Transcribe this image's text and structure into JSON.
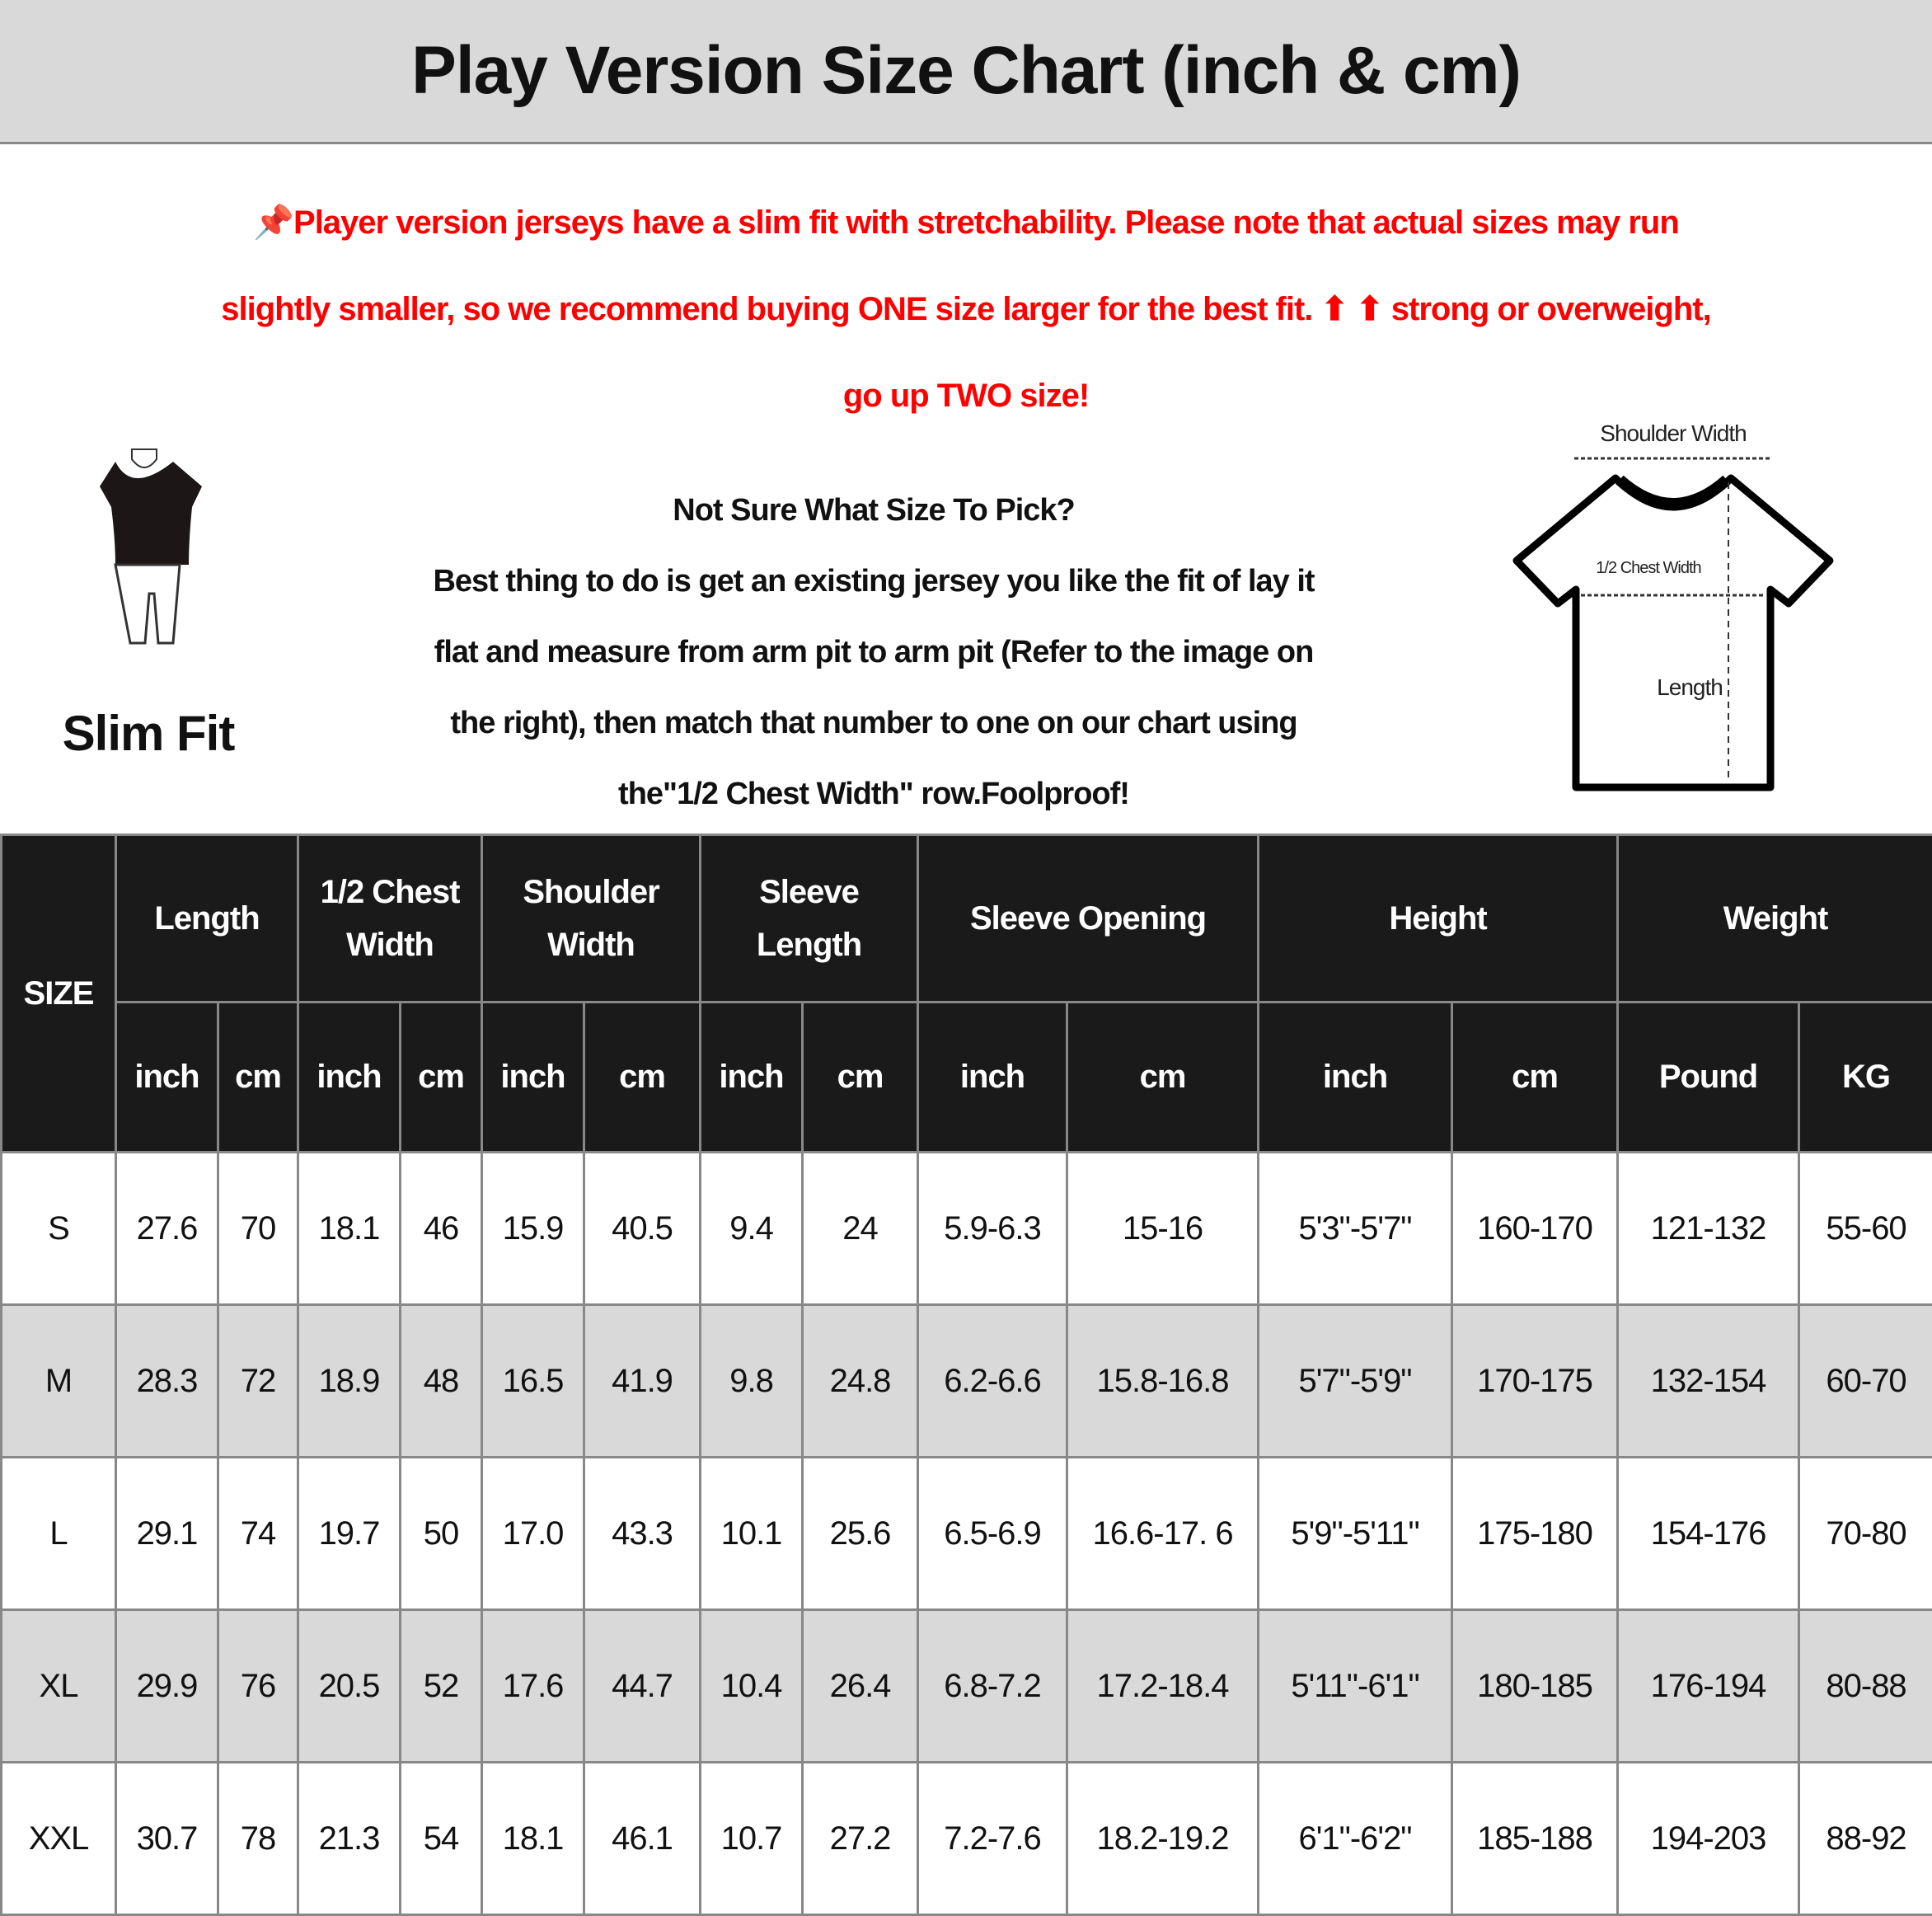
{
  "title": "Play Version Size Chart (inch & cm)",
  "notice": {
    "icon": "pushpin-icon",
    "lines": [
      "Player version jerseys have a slim fit with stretchability. Please note that actual sizes may run",
      "slightly smaller, so we recommend buying ONE size larger for the best fit. ⬆ ⬆ strong or overweight,",
      "go up TWO size!"
    ],
    "color": "#ff0000"
  },
  "slim_fit": {
    "label": "Slim Fit",
    "icon": "slim-fit-figure-icon"
  },
  "guide": {
    "heading": "Not Sure What Size To Pick?",
    "lines": [
      "Best thing to do is get an existing jersey you like the fit of lay it",
      "flat and measure from arm pit to arm pit (Refer to the image on",
      "the right), then match that number to one on our chart using",
      "the\"1/2 Chest Width\" row.Foolproof!"
    ]
  },
  "diagram": {
    "icon": "tshirt-measurement-icon",
    "shoulder": "Shoulder Width",
    "chest": "1/2 Chest Width",
    "length": "Length"
  },
  "table": {
    "size_header": "SIZE",
    "groups": [
      {
        "label": [
          "Length"
        ]
      },
      {
        "label": [
          "1/2 Chest",
          "Width"
        ]
      },
      {
        "label": [
          "Shoulder",
          "Width"
        ]
      },
      {
        "label": [
          "Sleeve",
          "Length"
        ]
      },
      {
        "label": [
          "Sleeve Opening"
        ]
      },
      {
        "label": [
          "Height"
        ]
      },
      {
        "label": [
          "Weight"
        ]
      }
    ],
    "units": [
      "inch",
      "cm",
      "inch",
      "cm",
      "inch",
      "cm",
      "inch",
      "cm",
      "inch",
      "cm",
      "inch",
      "cm",
      "Pound",
      "KG"
    ],
    "rows": [
      [
        "S",
        "27.6",
        "70",
        "18.1",
        "46",
        "15.9",
        "40.5",
        "9.4",
        "24",
        "5.9-6.3",
        "15-16",
        "5'3\"-5'7\"",
        "160-170",
        "121-132",
        "55-60"
      ],
      [
        "M",
        "28.3",
        "72",
        "18.9",
        "48",
        "16.5",
        "41.9",
        "9.8",
        "24.8",
        "6.2-6.6",
        "15.8-16.8",
        "5'7\"-5'9\"",
        "170-175",
        "132-154",
        "60-70"
      ],
      [
        "L",
        "29.1",
        "74",
        "19.7",
        "50",
        "17.0",
        "43.3",
        "10.1",
        "25.6",
        "6.5-6.9",
        "16.6-17. 6",
        "5'9\"-5'11\"",
        "175-180",
        "154-176",
        "70-80"
      ],
      [
        "XL",
        "29.9",
        "76",
        "20.5",
        "52",
        "17.6",
        "44.7",
        "10.4",
        "26.4",
        "6.8-7.2",
        "17.2-18.4",
        "5'11\"-6'1\"",
        "180-185",
        "176-194",
        "80-88"
      ],
      [
        "XXL",
        "30.7",
        "78",
        "21.3",
        "54",
        "18.1",
        "46.1",
        "10.7",
        "27.2",
        "7.2-7.6",
        "18.2-19.2",
        "6'1\"-6'2\"",
        "185-188",
        "194-203",
        "88-92"
      ]
    ]
  }
}
